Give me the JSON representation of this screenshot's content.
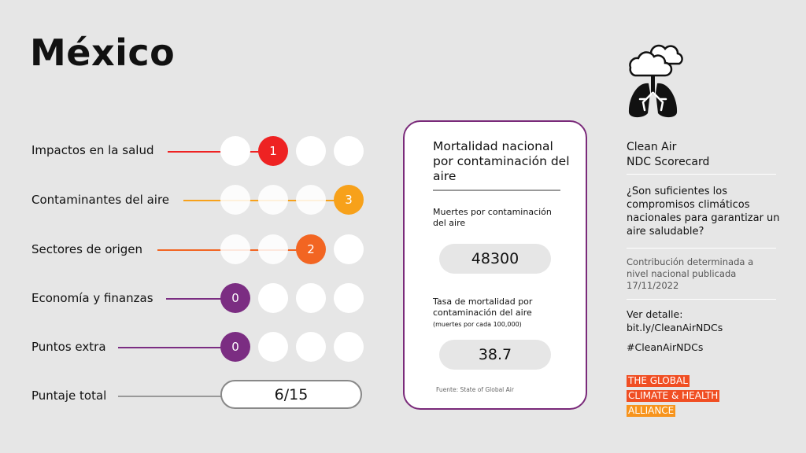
{
  "country": "México",
  "rows": [
    {
      "label": "Impactos en la salud",
      "score": "1",
      "color": "#ee2222"
    },
    {
      "label": "Contaminantes del aire",
      "score": "3",
      "color": "#f7a11a"
    },
    {
      "label": "Sectores de origen",
      "score": "2",
      "color": "#f26522"
    },
    {
      "label": "Economía y finanzas",
      "score": "0",
      "color": "#7b2d82"
    },
    {
      "label": "Puntos extra",
      "score": "0",
      "color": "#7b2d82"
    }
  ],
  "total": {
    "label": "Puntaje total",
    "value": "6/15"
  },
  "card": {
    "title": "Mortalidad nacional por contaminación del aire",
    "deaths_label": "Muertes por contaminación del aire",
    "deaths_value": "48300",
    "rate_label": "Tasa de mortalidad por contaminación del aire",
    "rate_note": "(muertes por cada 100,000)",
    "rate_value": "38.7",
    "source": "Fuente: State of Global Air"
  },
  "sidebar": {
    "title_line1": "Clean Air",
    "title_line2": "NDC Scorecard",
    "question": "¿Son suficientes los compromisos climáticos nacionales para garantizar un aire saludable?",
    "contribution": "Contribución determinada a nivel nacional publicada 17/11/2022",
    "link_label": "Ver detalle:",
    "link": "bit.ly/CleanAirNDCs",
    "hashtag": "#CleanAirNDCs"
  },
  "logo": {
    "line1": "THE GLOBAL",
    "line2": "CLIMATE & HEALTH",
    "line3": "ALLIANCE"
  },
  "icon": "clouds-lungs-icon"
}
